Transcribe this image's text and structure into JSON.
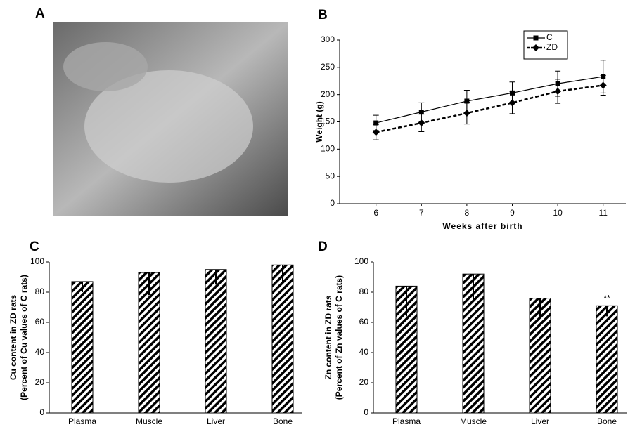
{
  "photo": {
    "label": "A"
  },
  "chart_data": [
    {
      "type": "line",
      "label": "B",
      "xlabel": "Weeks after birth",
      "ylabel": [
        "Weight (g)"
      ],
      "x": [
        6,
        7,
        8,
        9,
        10,
        11
      ],
      "xlim": [
        5.2,
        11.5
      ],
      "xticks": [
        6,
        7,
        8,
        9,
        10,
        11
      ],
      "ylim": [
        0,
        300
      ],
      "yticks": [
        0,
        50,
        100,
        150,
        200,
        250,
        300
      ],
      "legend": "upper right",
      "series": [
        {
          "name": "C",
          "color": "#000000",
          "dash": false,
          "marker": "square",
          "values": [
            148,
            168,
            188,
            203,
            220,
            233
          ],
          "errors": [
            14,
            17,
            20,
            20,
            23,
            30
          ]
        },
        {
          "name": "ZD",
          "color": "#000000",
          "dash": true,
          "marker": "diamond",
          "values": [
            131,
            148,
            166,
            185,
            206,
            217
          ],
          "errors": [
            14,
            16,
            20,
            20,
            22,
            18
          ]
        }
      ]
    },
    {
      "type": "bar",
      "label": "C",
      "ylabel": [
        "Cu content in ZD rats",
        "(Percent of Cu values of C rats)"
      ],
      "categories": [
        "Plasma",
        "Muscle",
        "Liver",
        "Bone"
      ],
      "values": [
        87,
        93,
        95,
        98
      ],
      "errors": [
        7,
        15,
        10,
        12
      ],
      "ylim": [
        0,
        100
      ],
      "yticks": [
        0,
        20,
        40,
        60,
        80,
        100
      ],
      "color": "#000000"
    },
    {
      "type": "bar",
      "label": "D",
      "ylabel": [
        "Zn content in ZD rats",
        "(Percent of Zn values of C rats)"
      ],
      "categories": [
        "Plasma",
        "Muscle",
        "Liver",
        "Bone"
      ],
      "values": [
        84,
        92,
        76,
        71
      ],
      "errors": [
        20,
        17,
        12,
        7
      ],
      "ylim": [
        0,
        100
      ],
      "yticks": [
        0,
        20,
        40,
        60,
        80,
        100
      ],
      "color": "#000000",
      "annotations": [
        {
          "text": "**",
          "category": "Bone"
        }
      ]
    }
  ]
}
